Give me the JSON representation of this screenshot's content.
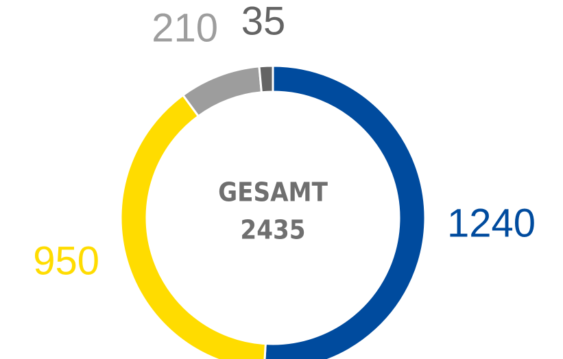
{
  "chart_data": {
    "type": "donut",
    "categories": [
      null,
      null,
      null,
      null
    ],
    "values": [
      1240,
      950,
      210,
      35
    ],
    "colors": [
      "#004b9e",
      "#ffdc00",
      "#9d9d9d",
      "#646464"
    ],
    "center_label": "GESAMT",
    "total": 2435
  }
}
